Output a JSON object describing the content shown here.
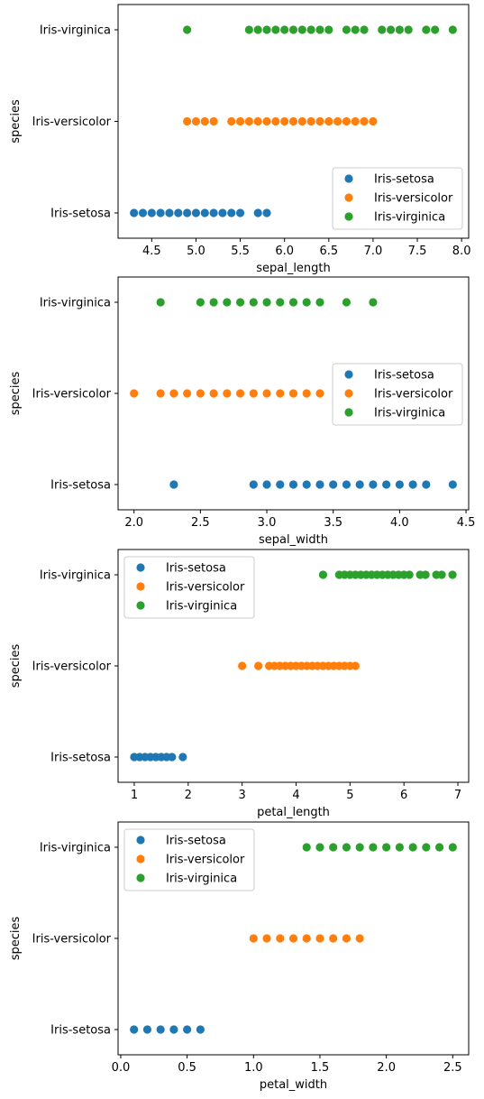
{
  "colors": {
    "Iris-setosa": "#1f77b4",
    "Iris-versicolor": "#ff7f0e",
    "Iris-virginica": "#2ca02c"
  },
  "chart_data": [
    {
      "type": "scatter",
      "xlabel": "sepal_length",
      "ylabel": "species",
      "categories": [
        "Iris-setosa",
        "Iris-versicolor",
        "Iris-virginica"
      ],
      "xlim": [
        4.12,
        8.08
      ],
      "xticks": [
        4.5,
        5.0,
        5.5,
        6.0,
        6.5,
        7.0,
        7.5,
        8.0
      ],
      "xtick_labels": [
        "4.5",
        "5.0",
        "5.5",
        "6.0",
        "6.5",
        "7.0",
        "7.5",
        "8.0"
      ],
      "legend_position": "lower-right",
      "series": [
        {
          "name": "Iris-setosa",
          "x": [
            4.3,
            4.4,
            4.5,
            4.6,
            4.7,
            4.8,
            4.9,
            5.0,
            5.1,
            5.2,
            5.3,
            5.4,
            5.5,
            5.7,
            5.8
          ]
        },
        {
          "name": "Iris-versicolor",
          "x": [
            4.9,
            5.0,
            5.1,
            5.2,
            5.4,
            5.5,
            5.6,
            5.7,
            5.8,
            5.9,
            6.0,
            6.1,
            6.2,
            6.3,
            6.4,
            6.5,
            6.6,
            6.7,
            6.8,
            6.9,
            7.0
          ]
        },
        {
          "name": "Iris-virginica",
          "x": [
            4.9,
            5.6,
            5.7,
            5.8,
            5.9,
            6.0,
            6.1,
            6.2,
            6.3,
            6.4,
            6.5,
            6.7,
            6.8,
            6.9,
            7.1,
            7.2,
            7.3,
            7.4,
            7.6,
            7.7,
            7.9
          ]
        }
      ]
    },
    {
      "type": "scatter",
      "xlabel": "sepal_width",
      "ylabel": "species",
      "categories": [
        "Iris-setosa",
        "Iris-versicolor",
        "Iris-virginica"
      ],
      "xlim": [
        1.88,
        4.52
      ],
      "xticks": [
        2.0,
        2.5,
        3.0,
        3.5,
        4.0,
        4.5
      ],
      "xtick_labels": [
        "2.0",
        "2.5",
        "3.0",
        "3.5",
        "4.0",
        "4.5"
      ],
      "legend_position": "center-right",
      "series": [
        {
          "name": "Iris-setosa",
          "x": [
            2.3,
            2.9,
            3.0,
            3.1,
            3.2,
            3.3,
            3.4,
            3.5,
            3.6,
            3.7,
            3.8,
            3.9,
            4.0,
            4.1,
            4.2,
            4.4
          ]
        },
        {
          "name": "Iris-versicolor",
          "x": [
            2.0,
            2.2,
            2.3,
            2.4,
            2.5,
            2.6,
            2.7,
            2.8,
            2.9,
            3.0,
            3.1,
            3.2,
            3.3,
            3.4
          ]
        },
        {
          "name": "Iris-virginica",
          "x": [
            2.2,
            2.5,
            2.6,
            2.7,
            2.8,
            2.9,
            3.0,
            3.1,
            3.2,
            3.3,
            3.4,
            3.6,
            3.8
          ]
        }
      ]
    },
    {
      "type": "scatter",
      "xlabel": "petal_length",
      "ylabel": "species",
      "categories": [
        "Iris-setosa",
        "Iris-versicolor",
        "Iris-virginica"
      ],
      "xlim": [
        0.7,
        7.2
      ],
      "xticks": [
        1,
        2,
        3,
        4,
        5,
        6,
        7
      ],
      "xtick_labels": [
        "1",
        "2",
        "3",
        "4",
        "5",
        "6",
        "7"
      ],
      "legend_position": "upper-left",
      "series": [
        {
          "name": "Iris-setosa",
          "x": [
            1.0,
            1.1,
            1.2,
            1.3,
            1.4,
            1.5,
            1.6,
            1.7,
            1.9
          ]
        },
        {
          "name": "Iris-versicolor",
          "x": [
            3.0,
            3.3,
            3.5,
            3.6,
            3.7,
            3.8,
            3.9,
            4.0,
            4.1,
            4.2,
            4.3,
            4.4,
            4.5,
            4.6,
            4.7,
            4.8,
            4.9,
            5.0,
            5.1
          ]
        },
        {
          "name": "Iris-virginica",
          "x": [
            4.5,
            4.8,
            4.9,
            5.0,
            5.1,
            5.2,
            5.3,
            5.4,
            5.5,
            5.6,
            5.7,
            5.8,
            5.9,
            6.0,
            6.1,
            6.3,
            6.4,
            6.6,
            6.7,
            6.9
          ]
        }
      ]
    },
    {
      "type": "scatter",
      "xlabel": "petal_width",
      "ylabel": "species",
      "categories": [
        "Iris-setosa",
        "Iris-versicolor",
        "Iris-virginica"
      ],
      "xlim": [
        -0.02,
        2.62
      ],
      "xticks": [
        0.0,
        0.5,
        1.0,
        1.5,
        2.0,
        2.5
      ],
      "xtick_labels": [
        "0.0",
        "0.5",
        "1.0",
        "1.5",
        "2.0",
        "2.5"
      ],
      "legend_position": "upper-left",
      "series": [
        {
          "name": "Iris-setosa",
          "x": [
            0.1,
            0.2,
            0.3,
            0.4,
            0.5,
            0.6
          ]
        },
        {
          "name": "Iris-versicolor",
          "x": [
            1.0,
            1.1,
            1.2,
            1.3,
            1.4,
            1.5,
            1.6,
            1.7,
            1.8
          ]
        },
        {
          "name": "Iris-virginica",
          "x": [
            1.4,
            1.5,
            1.6,
            1.7,
            1.8,
            1.9,
            2.0,
            2.1,
            2.2,
            2.3,
            2.4,
            2.5
          ]
        }
      ]
    }
  ]
}
